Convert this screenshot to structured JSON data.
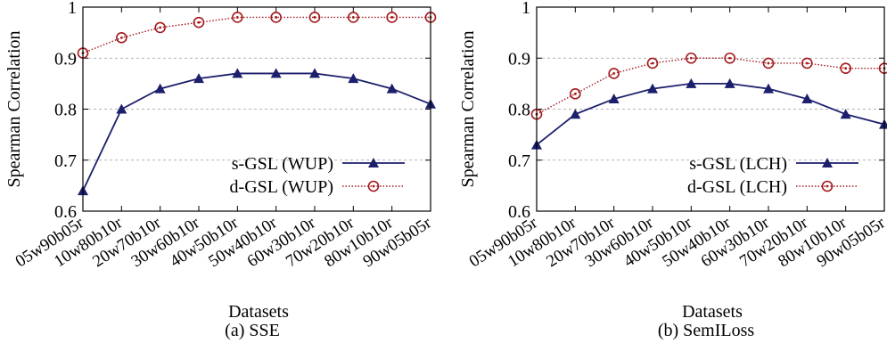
{
  "chart_data": [
    {
      "type": "line",
      "caption": "(a) SSE",
      "xlabel": "Datasets",
      "ylabel": "Spearman Correlation",
      "ylim": [
        0.6,
        1.0
      ],
      "yticks": [
        "0.6",
        "0.7",
        "0.8",
        "0.9",
        "1"
      ],
      "grid": "horizontal dashed",
      "legend_position": "bottom-right",
      "categories": [
        "05w90b05r",
        "10w80b10r",
        "20w70b10r",
        "30w60b10r",
        "40w50b10r",
        "50w40b10r",
        "60w30b10r",
        "70w20b10r",
        "80w10b10r",
        "90w05b05r"
      ],
      "series": [
        {
          "name": "s-GSL (WUP)",
          "color": "#1c1f6b",
          "marker": "triangle",
          "line": "solid",
          "values": [
            0.64,
            0.8,
            0.84,
            0.86,
            0.87,
            0.87,
            0.87,
            0.86,
            0.84,
            0.81
          ]
        },
        {
          "name": "d-GSL (WUP)",
          "color": "#a3191c",
          "marker": "circle-dot",
          "line": "dotted",
          "values": [
            0.91,
            0.94,
            0.96,
            0.97,
            0.98,
            0.98,
            0.98,
            0.98,
            0.98,
            0.98
          ]
        }
      ]
    },
    {
      "type": "line",
      "caption": "(b) SemILoss",
      "xlabel": "Datasets",
      "ylabel": "Spearman Correlation",
      "ylim": [
        0.6,
        1.0
      ],
      "yticks": [
        "0.6",
        "0.7",
        "0.8",
        "0.9",
        "1"
      ],
      "grid": "horizontal dashed",
      "legend_position": "bottom-right",
      "categories": [
        "05w90b05r",
        "10w80b10r",
        "20w70b10r",
        "30w60b10r",
        "40w50b10r",
        "50w40b10r",
        "60w30b10r",
        "70w20b10r",
        "80w10b10r",
        "90w05b05r"
      ],
      "series": [
        {
          "name": "s-GSL (LCH)",
          "color": "#1c1f6b",
          "marker": "triangle",
          "line": "solid",
          "values": [
            0.73,
            0.79,
            0.82,
            0.84,
            0.85,
            0.85,
            0.84,
            0.82,
            0.79,
            0.77
          ]
        },
        {
          "name": "d-GSL (LCH)",
          "color": "#a3191c",
          "marker": "circle-dot",
          "line": "dotted",
          "values": [
            0.79,
            0.83,
            0.87,
            0.89,
            0.9,
            0.9,
            0.89,
            0.89,
            0.88,
            0.88
          ]
        }
      ]
    }
  ]
}
